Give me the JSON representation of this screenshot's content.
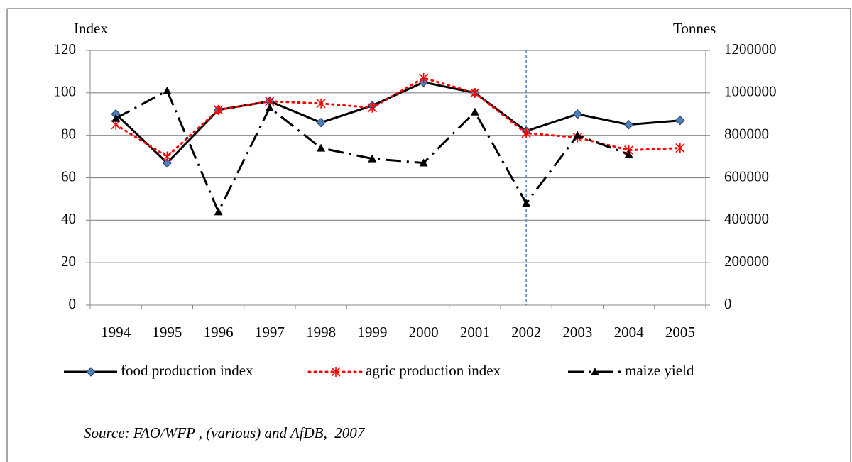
{
  "chart_data": {
    "type": "line",
    "ylabel": "Index",
    "y2label": "Tonnes",
    "categories": [
      "1994",
      "1995",
      "1996",
      "1997",
      "1998",
      "1999",
      "2000",
      "2001",
      "2002",
      "2003",
      "2004",
      "2005"
    ],
    "series": [
      {
        "name": "food production index",
        "color": "#000000",
        "marker_color": "#4f81bd",
        "style": "solid",
        "marker": "diamond",
        "values": [
          90,
          67,
          92,
          96,
          86,
          94,
          105,
          100,
          82,
          90,
          85,
          87
        ]
      },
      {
        "name": "agric production index",
        "color": "#ff0000",
        "marker_color": "#ff0000",
        "style": "dot",
        "marker": "star",
        "values": [
          85,
          70,
          92,
          96,
          95,
          93,
          107,
          100,
          81,
          79,
          73,
          74
        ]
      },
      {
        "name": "maize yield",
        "color": "#000000",
        "marker_color": "#000000",
        "style": "dashdot",
        "marker": "triangle",
        "axis": "y2",
        "values": [
          880000,
          1010000,
          440000,
          930000,
          740000,
          690000,
          670000,
          910000,
          480000,
          800000,
          710000,
          null
        ]
      }
    ],
    "ylim": [
      0,
      120
    ],
    "yticks": [
      0,
      20,
      40,
      60,
      80,
      100,
      120
    ],
    "y2lim": [
      0,
      1200000
    ],
    "y2ticks": [
      0,
      200000,
      400000,
      600000,
      800000,
      1000000,
      1200000
    ],
    "grid": true,
    "vline_at": "2002",
    "legend": "bottom",
    "source": "Source: FAO/WFP , (various) and AfDB,  2007"
  }
}
